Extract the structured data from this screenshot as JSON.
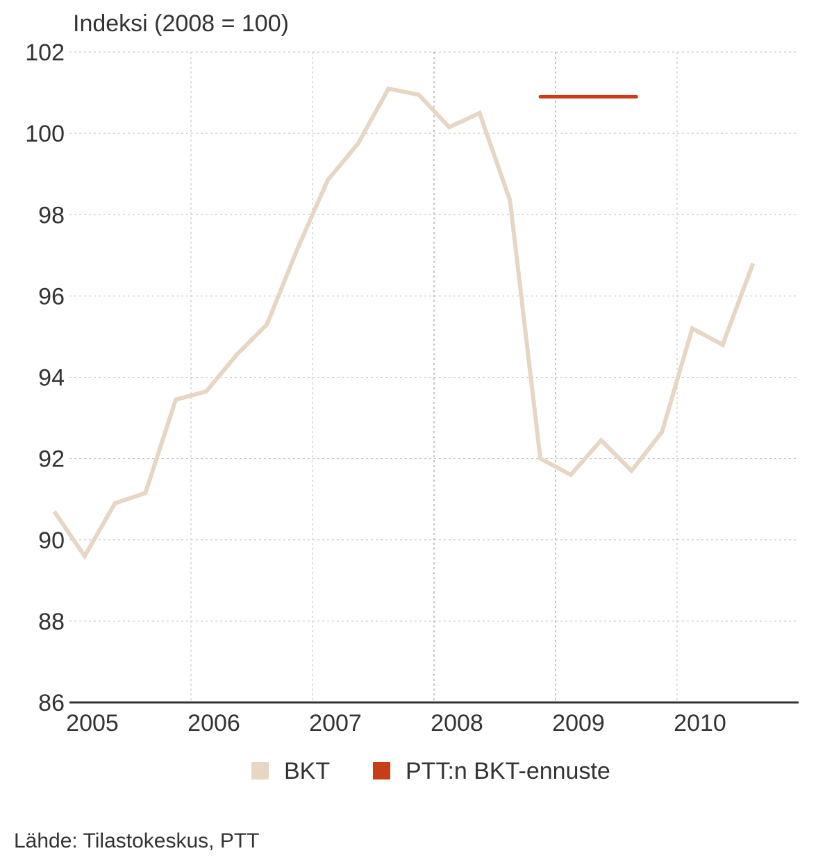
{
  "chart_data": {
    "type": "line",
    "ylabel": "Indeksi (2008 = 100)",
    "ylim": [
      86,
      102
    ],
    "yticks": [
      86,
      88,
      90,
      92,
      94,
      96,
      98,
      100,
      102
    ],
    "xlim": [
      2005,
      2011
    ],
    "xticks": [
      "2005",
      "2006",
      "2007",
      "2008",
      "2009",
      "2010"
    ],
    "series": [
      {
        "name": "BKT",
        "color": "#e6d6c3",
        "points": [
          {
            "x": 2004.875,
            "y": 90.7
          },
          {
            "x": 2005.125,
            "y": 89.6
          },
          {
            "x": 2005.375,
            "y": 90.9
          },
          {
            "x": 2005.625,
            "y": 91.15
          },
          {
            "x": 2005.875,
            "y": 93.45
          },
          {
            "x": 2006.125,
            "y": 93.65
          },
          {
            "x": 2006.375,
            "y": 94.55
          },
          {
            "x": 2006.625,
            "y": 95.3
          },
          {
            "x": 2006.875,
            "y": 97.15
          },
          {
            "x": 2007.125,
            "y": 98.85
          },
          {
            "x": 2007.375,
            "y": 99.75
          },
          {
            "x": 2007.625,
            "y": 101.1
          },
          {
            "x": 2007.875,
            "y": 100.95
          },
          {
            "x": 2008.125,
            "y": 100.15
          },
          {
            "x": 2008.375,
            "y": 100.5
          },
          {
            "x": 2008.625,
            "y": 98.35
          },
          {
            "x": 2008.875,
            "y": 92.0
          },
          {
            "x": 2009.125,
            "y": 91.6
          },
          {
            "x": 2009.375,
            "y": 92.45
          },
          {
            "x": 2009.625,
            "y": 91.7
          },
          {
            "x": 2009.875,
            "y": 92.65
          },
          {
            "x": 2010.125,
            "y": 95.2
          },
          {
            "x": 2010.375,
            "y": 94.8
          },
          {
            "x": 2010.625,
            "y": 96.8
          }
        ]
      },
      {
        "name": "PTT:n BKT-ennuste",
        "color": "#c73e16",
        "points": [
          {
            "x": 2008.875,
            "y": 100.9
          },
          {
            "x": 2009.665,
            "y": 100.9
          }
        ]
      }
    ],
    "legend": [
      "BKT",
      "PTT:n BKT-ennuste"
    ],
    "legend_position": "bottom",
    "grid": true
  },
  "source": "Lähde: Tilastokeskus, PTT"
}
